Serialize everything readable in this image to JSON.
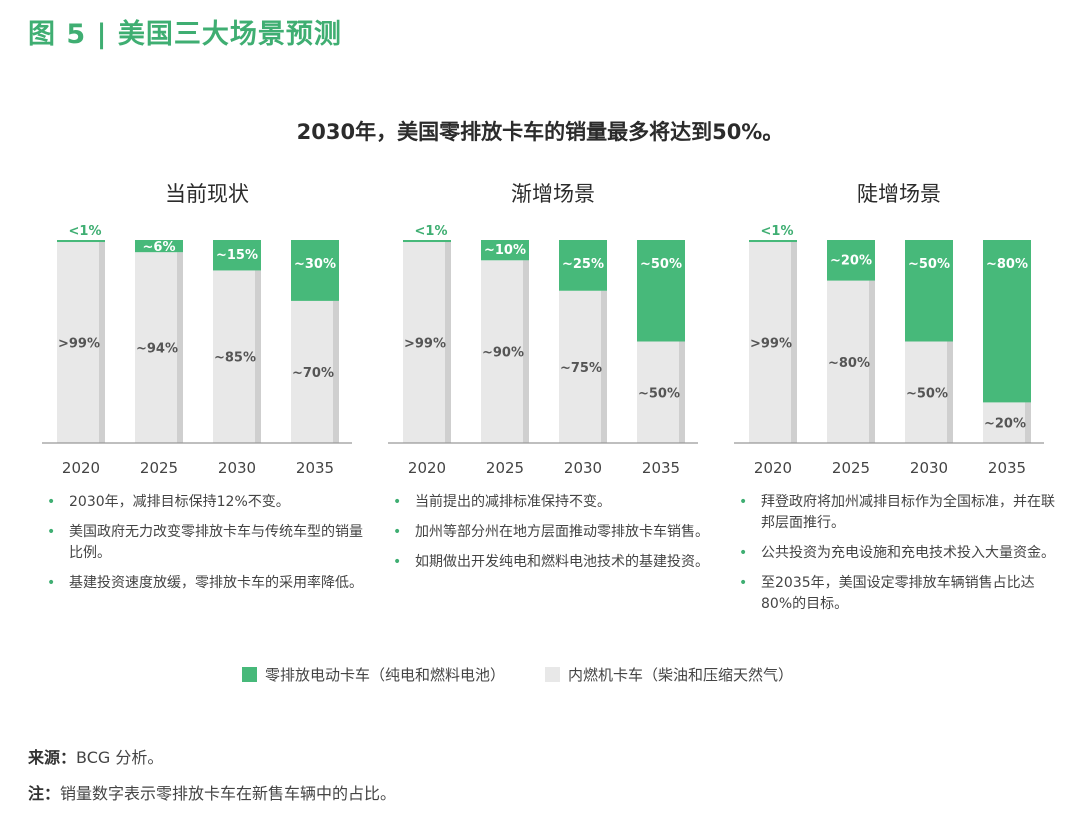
{
  "header": {
    "figure_label": "图 5 | 美国三大场景预测",
    "main_title": "2030年，美国零排放卡车的销量最多将达到50%。"
  },
  "colors": {
    "zev": "#47b97a",
    "ice": "#e8e8e8",
    "ice_shadow": "#cfcfcf",
    "axis": "#999999",
    "accent_text": "#3fae72"
  },
  "chart_data": [
    {
      "type": "bar",
      "stacked": true,
      "title": "当前现状",
      "categories": [
        "2020",
        "2025",
        "2030",
        "2035"
      ],
      "ylim": [
        0,
        100
      ],
      "series": [
        {
          "name": "内燃机卡车（柴油和压缩天然气）",
          "values": [
            99,
            94,
            85,
            70
          ],
          "labels": [
            ">99%",
            "~94%",
            "~85%",
            "~70%"
          ]
        },
        {
          "name": "零排放电动卡车（纯电和燃料电池）",
          "values": [
            1,
            6,
            15,
            30
          ],
          "labels": [
            "<1%",
            "~6%",
            "~15%",
            "~30%"
          ]
        }
      ]
    },
    {
      "type": "bar",
      "stacked": true,
      "title": "渐增场景",
      "categories": [
        "2020",
        "2025",
        "2030",
        "2035"
      ],
      "ylim": [
        0,
        100
      ],
      "series": [
        {
          "name": "内燃机卡车（柴油和压缩天然气）",
          "values": [
            99,
            90,
            75,
            50
          ],
          "labels": [
            ">99%",
            "~90%",
            "~75%",
            "~50%"
          ]
        },
        {
          "name": "零排放电动卡车（纯电和燃料电池）",
          "values": [
            1,
            10,
            25,
            50
          ],
          "labels": [
            "<1%",
            "~10%",
            "~25%",
            "~50%"
          ]
        }
      ]
    },
    {
      "type": "bar",
      "stacked": true,
      "title": "陡增场景",
      "categories": [
        "2020",
        "2025",
        "2030",
        "2035"
      ],
      "ylim": [
        0,
        100
      ],
      "series": [
        {
          "name": "内燃机卡车（柴油和压缩天然气）",
          "values": [
            99,
            80,
            50,
            20
          ],
          "labels": [
            ">99%",
            "~80%",
            "~50%",
            "~20%"
          ]
        },
        {
          "name": "零排放电动卡车（纯电和燃料电池）",
          "values": [
            1,
            20,
            50,
            80
          ],
          "labels": [
            "<1%",
            "~20%",
            "~50%",
            "~80%"
          ]
        }
      ]
    }
  ],
  "panels": [
    {
      "bullets": [
        "2030年，减排目标保持12%不变。",
        "美国政府无力改变零排放卡车与传统车型的销量比例。",
        "基建投资速度放缓，零排放卡车的采用率降低。"
      ]
    },
    {
      "bullets": [
        "当前提出的减排标准保持不变。",
        "加州等部分州在地方层面推动零排放卡车销售。",
        "如期做出开发纯电和燃料电池技术的基建投资。"
      ]
    },
    {
      "bullets": [
        "拜登政府将加州减排目标作为全国标准，并在联邦层面推行。",
        "公共投资为充电设施和充电技术投入大量资金。",
        "至2035年，美国设定零排放车辆销售占比达80%的目标。"
      ]
    }
  ],
  "legend": {
    "zev_label": "零排放电动卡车（纯电和燃料电池）",
    "ice_label": "内燃机卡车（柴油和压缩天然气）"
  },
  "footer": {
    "source_label": "来源：",
    "source_text": "BCG 分析。",
    "note_label": "注：",
    "note_text": "销量数字表示零排放卡车在新售车辆中的占比。"
  }
}
